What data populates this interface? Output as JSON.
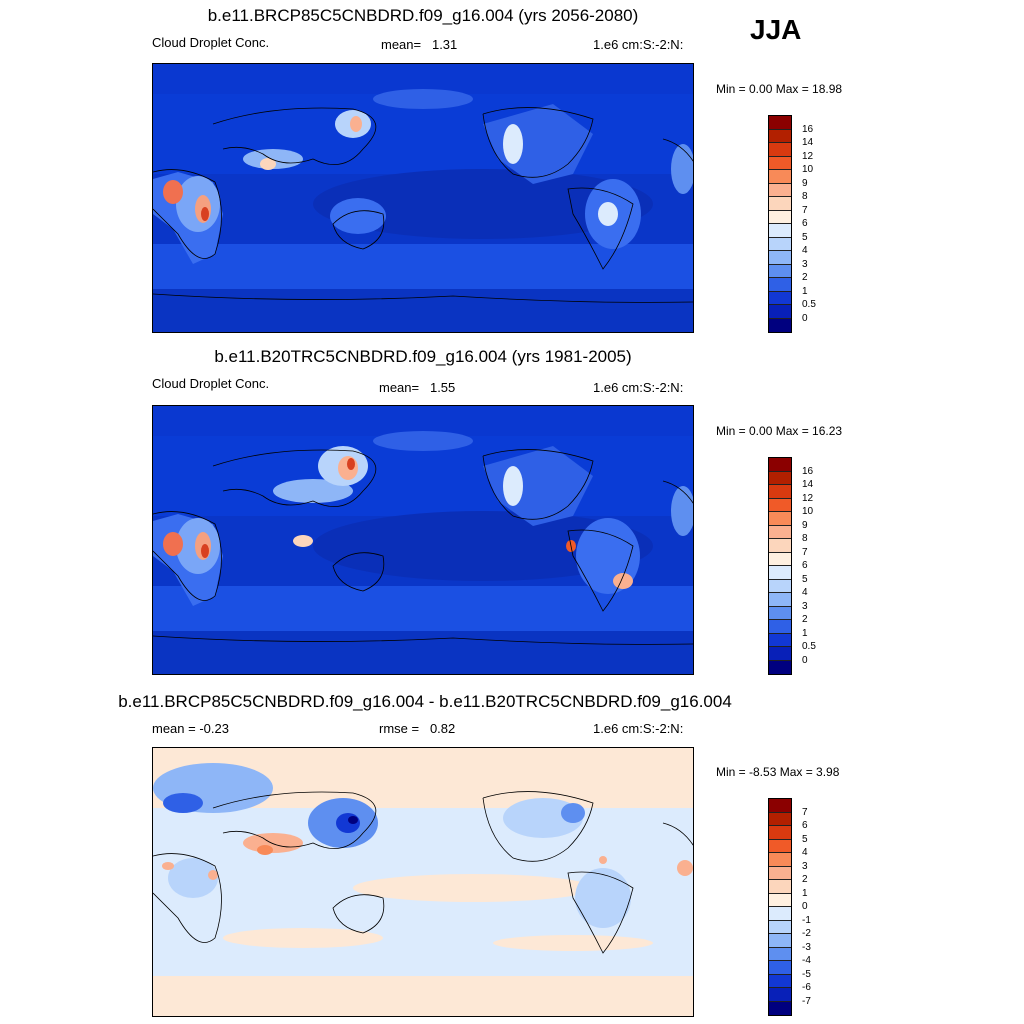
{
  "season": "JJA",
  "panels": [
    {
      "title": "b.e11.BRCP85C5CNBDRD.f09_g16.004 (yrs 2056-2080)",
      "left_label": "Cloud Droplet Conc.",
      "stat_label": "mean=",
      "stat_value": "1.31",
      "units": "1.e6 cm:S:-2:N:",
      "min_text": "Min =   0.00 Max =  18.98"
    },
    {
      "title": "b.e11.B20TRC5CNBDRD.f09_g16.004 (yrs 1981-2005)",
      "left_label": "Cloud Droplet Conc.",
      "stat_label": "mean=",
      "stat_value": "1.55",
      "units": "1.e6 cm:S:-2:N:",
      "min_text": "Min =   0.00 Max =  16.23"
    },
    {
      "title": "b.e11.BRCP85C5CNBDRD.f09_g16.004 - b.e11.B20TRC5CNBDRD.f09_g16.004",
      "left_label": "mean =  -0.23",
      "stat_label": "rmse =",
      "stat_value": "0.82",
      "units": "1.e6 cm:S:-2:N:",
      "min_text": "Min =  -8.53 Max =   3.98"
    }
  ],
  "colorbars": {
    "abs": {
      "labels": [
        "16",
        "14",
        "12",
        "10",
        "9",
        "8",
        "7",
        "6",
        "5",
        "4",
        "3",
        "2",
        "1",
        "0.5",
        "0"
      ],
      "colors": [
        "#8b0000",
        "#b22000",
        "#d83a10",
        "#f05a28",
        "#f88a58",
        "#fab090",
        "#fcd6bc",
        "#fff0e0",
        "#dcebfd",
        "#b8d4fb",
        "#8eb6f7",
        "#5e8ff0",
        "#2f60e6",
        "#1238d4",
        "#0820b8",
        "#00007f"
      ]
    },
    "diff": {
      "labels": [
        "7",
        "6",
        "5",
        "4",
        "3",
        "2",
        "1",
        "0",
        "-1",
        "-2",
        "-3",
        "-4",
        "-5",
        "-6",
        "-7"
      ],
      "colors": [
        "#8b0000",
        "#b22000",
        "#d83a10",
        "#f05a28",
        "#f88a58",
        "#fab090",
        "#fcd6bc",
        "#fff0e0",
        "#dcebfd",
        "#b8d4fb",
        "#8eb6f7",
        "#5e8ff0",
        "#2f60e6",
        "#1238d4",
        "#0820b8",
        "#00007f"
      ]
    }
  }
}
